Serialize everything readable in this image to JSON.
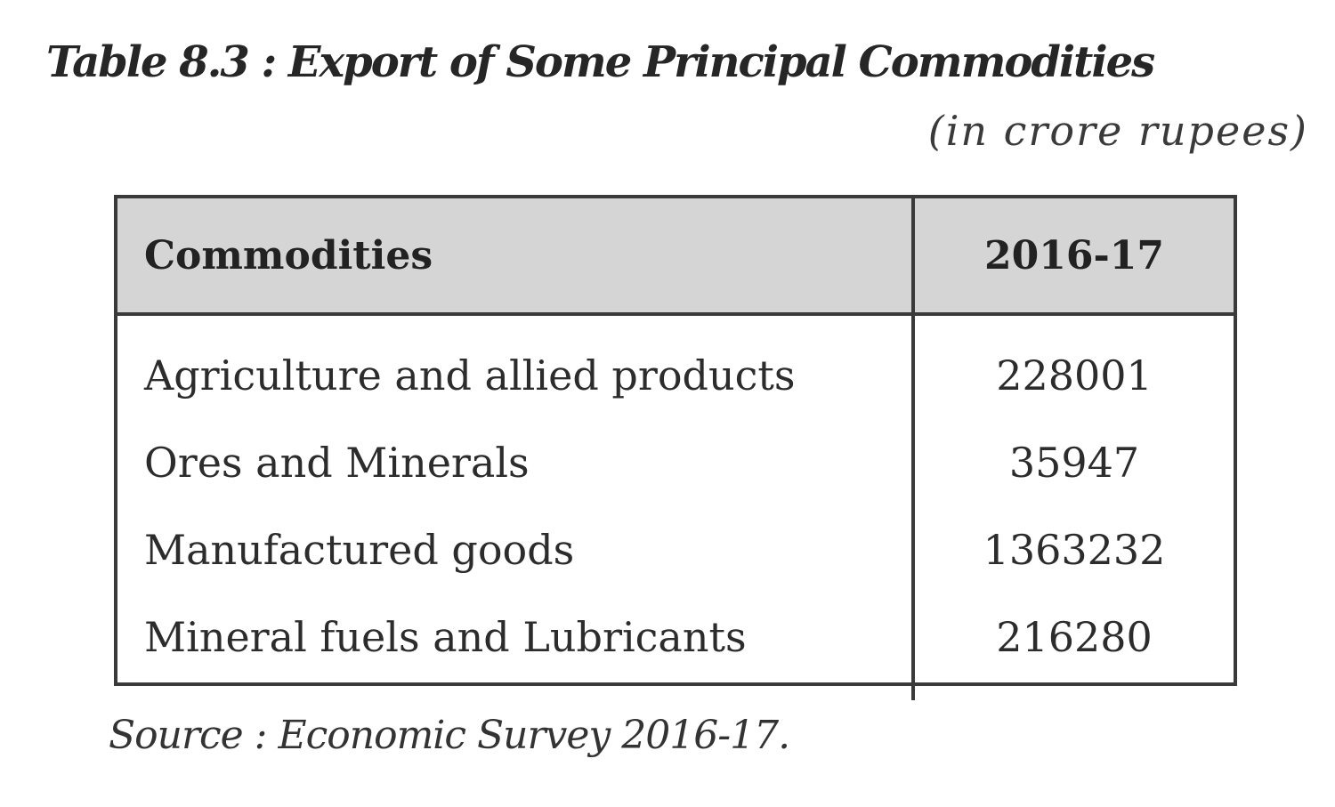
{
  "title": "Table 8.3 : Export of Some Principal Commodities",
  "unit_note": "(in crore rupees)",
  "table": {
    "headers": [
      "Commodities",
      "2016-17"
    ],
    "rows": [
      {
        "commodity": "Agriculture and allied products",
        "value": "228001"
      },
      {
        "commodity": "Ores and Minerals",
        "value": "35947"
      },
      {
        "commodity": "Manufactured goods",
        "value": "1363232"
      },
      {
        "commodity": "Mineral fuels and Lubricants",
        "value": "216280"
      }
    ]
  },
  "source": "Source :  Economic Survey 2016-17.",
  "colors": {
    "header_bg": "#d5d5d6",
    "border": "#3a3a3a",
    "text": "#2a2a2a"
  }
}
